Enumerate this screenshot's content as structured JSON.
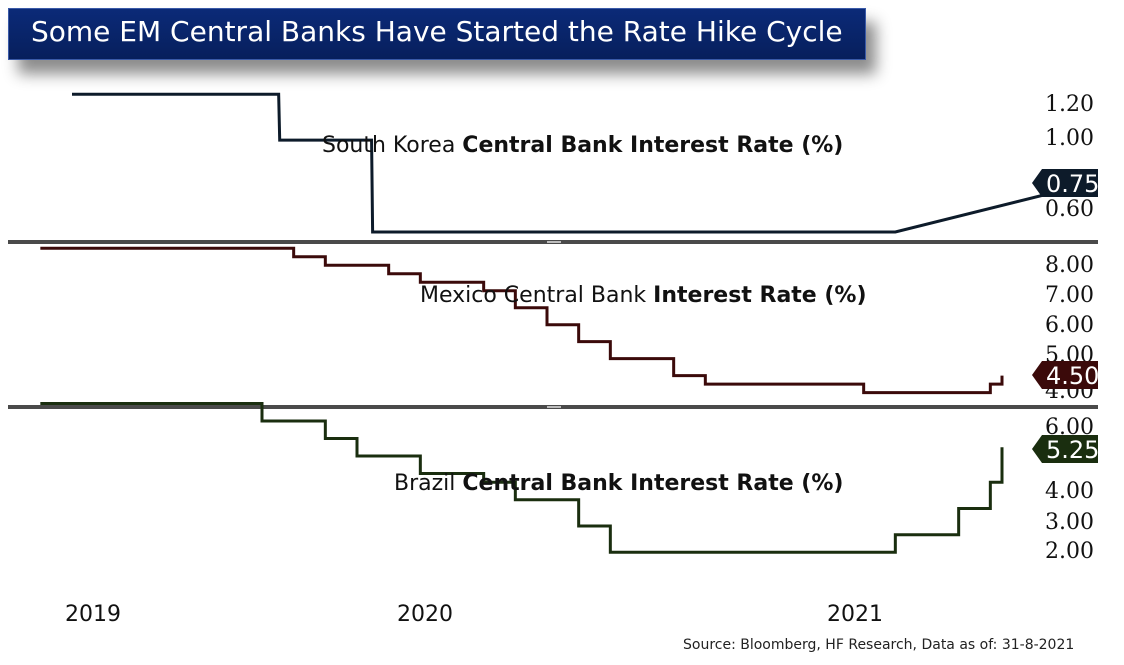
{
  "title": "Some EM Central Banks Have Started the Rate Hike Cycle",
  "source": "Source: Bloomberg, HF Research, Data as of: 31-8-2021",
  "x_axis_labels": [
    "2019",
    "2020",
    "2021"
  ],
  "chart_data": [
    {
      "type": "line",
      "title_plain": "South Korea ",
      "title_bold": "Central Bank Interest Rate (%)",
      "color": "#0d1b2a",
      "y_ticks": [
        "1.20",
        "1.00",
        "0.60"
      ],
      "ylim": [
        0.5,
        1.3
      ],
      "last_value_label": "0.75",
      "x": [
        "2019-01",
        "2019-07-17",
        "2019-07-18",
        "2019-10-15",
        "2019-10-16",
        "2021-03",
        "2021-08-26"
      ],
      "values": [
        1.25,
        1.25,
        1.0,
        1.0,
        0.5,
        0.5,
        0.75
      ]
    },
    {
      "type": "line",
      "title_plain": "Mexico Central Bank ",
      "title_bold": "Interest Rate (%)",
      "color": "#3b0a0a",
      "y_ticks": [
        "8.00",
        "7.00",
        "6.00",
        "5.00",
        "4.00"
      ],
      "ylim": [
        3.9,
        8.2
      ],
      "last_value_label": "4.50",
      "x": [
        "2018-12",
        "2019-08",
        "2019-09",
        "2019-11",
        "2019-12",
        "2020-02",
        "2020-03",
        "2020-04",
        "2020-05",
        "2020-06",
        "2020-08",
        "2020-09",
        "2021-02",
        "2021-06",
        "2021-08"
      ],
      "values": [
        8.25,
        8.0,
        7.75,
        7.5,
        7.25,
        7.0,
        6.5,
        6.0,
        5.5,
        5.0,
        4.5,
        4.25,
        4.0,
        4.25,
        4.5
      ]
    },
    {
      "type": "line",
      "title_plain": "Brazil ",
      "title_bold": "Central Bank Interest Rate (%)",
      "color": "#1a2e0f",
      "y_ticks": [
        "6.00",
        "4.00",
        "3.00",
        "2.00"
      ],
      "ylim": [
        1.8,
        6.2
      ],
      "last_value_label": "5.25",
      "x": [
        "2018-12",
        "2019-07",
        "2019-09",
        "2019-10",
        "2019-12",
        "2020-02",
        "2020-03",
        "2020-05",
        "2020-06",
        "2021-03",
        "2021-05",
        "2021-06",
        "2021-08"
      ],
      "values": [
        6.5,
        6.0,
        5.5,
        5.0,
        4.5,
        4.25,
        3.75,
        3.0,
        2.25,
        2.75,
        3.5,
        4.25,
        5.25
      ]
    }
  ]
}
